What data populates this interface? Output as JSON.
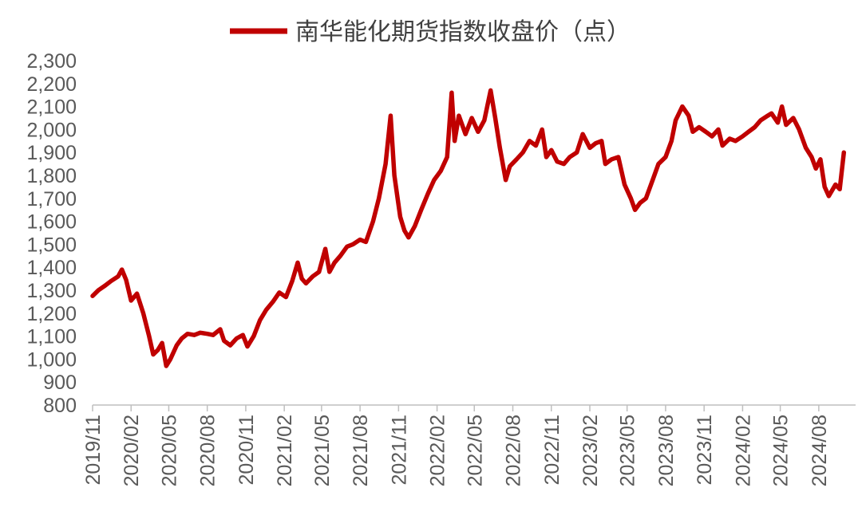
{
  "colors": {
    "series": "#C00000",
    "axis": "#BFBFBF",
    "text": "#595959"
  },
  "chart_data": {
    "type": "line",
    "legend_position": "top-center",
    "grid": false,
    "ylim": [
      800,
      2300
    ],
    "yticks": [
      800,
      900,
      1000,
      1100,
      1200,
      1300,
      1400,
      1500,
      1600,
      1700,
      1800,
      1900,
      2000,
      2100,
      2200,
      2300
    ],
    "ytick_labels": [
      "800",
      "900",
      "1,000",
      "1,100",
      "1,200",
      "1,300",
      "1,400",
      "1,500",
      "1,600",
      "1,700",
      "1,800",
      "1,900",
      "2,000",
      "2,100",
      "2,200",
      "2,300"
    ],
    "xlim": [
      "2019-11-01",
      "2024-10-28"
    ],
    "xticks": [
      "2019-11-01",
      "2020-02-01",
      "2020-05-01",
      "2020-08-01",
      "2020-11-01",
      "2021-02-01",
      "2021-05-01",
      "2021-08-01",
      "2021-11-01",
      "2022-02-01",
      "2022-05-01",
      "2022-08-01",
      "2022-11-01",
      "2023-02-01",
      "2023-05-01",
      "2023-08-01",
      "2023-11-01",
      "2024-02-01",
      "2024-05-01",
      "2024-08-01"
    ],
    "xtick_labels": [
      "2019/11",
      "2020/02",
      "2020/05",
      "2020/08",
      "2020/11",
      "2021/02",
      "2021/05",
      "2021/08",
      "2021/11",
      "2022/02",
      "2022/05",
      "2022/08",
      "2022/11",
      "2023/02",
      "2023/05",
      "2023/08",
      "2023/11",
      "2024/02",
      "2024/05",
      "2024/08"
    ],
    "series": [
      {
        "name": "南华能化期货指数收盘价（点）",
        "points": [
          [
            "2019-11-01",
            1275
          ],
          [
            "2019-11-15",
            1300
          ],
          [
            "2019-12-01",
            1320
          ],
          [
            "2019-12-15",
            1340
          ],
          [
            "2020-01-01",
            1360
          ],
          [
            "2020-01-10",
            1390
          ],
          [
            "2020-01-20",
            1345
          ],
          [
            "2020-02-01",
            1255
          ],
          [
            "2020-02-15",
            1285
          ],
          [
            "2020-03-01",
            1200
          ],
          [
            "2020-03-15",
            1100
          ],
          [
            "2020-03-25",
            1020
          ],
          [
            "2020-04-05",
            1040
          ],
          [
            "2020-04-15",
            1070
          ],
          [
            "2020-04-25",
            970
          ],
          [
            "2020-05-05",
            1000
          ],
          [
            "2020-05-20",
            1060
          ],
          [
            "2020-06-01",
            1090
          ],
          [
            "2020-06-15",
            1110
          ],
          [
            "2020-07-01",
            1105
          ],
          [
            "2020-07-15",
            1115
          ],
          [
            "2020-08-01",
            1110
          ],
          [
            "2020-08-15",
            1105
          ],
          [
            "2020-09-01",
            1130
          ],
          [
            "2020-09-10",
            1080
          ],
          [
            "2020-09-25",
            1060
          ],
          [
            "2020-10-10",
            1090
          ],
          [
            "2020-10-25",
            1105
          ],
          [
            "2020-11-05",
            1055
          ],
          [
            "2020-11-20",
            1100
          ],
          [
            "2020-12-05",
            1170
          ],
          [
            "2020-12-20",
            1215
          ],
          [
            "2021-01-05",
            1250
          ],
          [
            "2021-01-20",
            1290
          ],
          [
            "2021-02-05",
            1270
          ],
          [
            "2021-02-20",
            1340
          ],
          [
            "2021-03-05",
            1420
          ],
          [
            "2021-03-15",
            1350
          ],
          [
            "2021-03-25",
            1330
          ],
          [
            "2021-04-10",
            1360
          ],
          [
            "2021-04-25",
            1380
          ],
          [
            "2021-05-10",
            1480
          ],
          [
            "2021-05-20",
            1380
          ],
          [
            "2021-06-01",
            1420
          ],
          [
            "2021-06-15",
            1450
          ],
          [
            "2021-07-01",
            1490
          ],
          [
            "2021-07-15",
            1500
          ],
          [
            "2021-08-01",
            1520
          ],
          [
            "2021-08-15",
            1510
          ],
          [
            "2021-09-01",
            1600
          ],
          [
            "2021-09-15",
            1700
          ],
          [
            "2021-10-01",
            1850
          ],
          [
            "2021-10-13",
            2060
          ],
          [
            "2021-10-22",
            1800
          ],
          [
            "2021-11-05",
            1620
          ],
          [
            "2021-11-15",
            1560
          ],
          [
            "2021-11-25",
            1530
          ],
          [
            "2021-12-10",
            1580
          ],
          [
            "2021-12-25",
            1650
          ],
          [
            "2022-01-10",
            1720
          ],
          [
            "2022-01-25",
            1780
          ],
          [
            "2022-02-10",
            1820
          ],
          [
            "2022-02-25",
            1880
          ],
          [
            "2022-03-08",
            2160
          ],
          [
            "2022-03-15",
            1950
          ],
          [
            "2022-03-25",
            2060
          ],
          [
            "2022-04-10",
            1980
          ],
          [
            "2022-04-25",
            2050
          ],
          [
            "2022-05-10",
            1990
          ],
          [
            "2022-05-25",
            2040
          ],
          [
            "2022-06-09",
            2170
          ],
          [
            "2022-06-20",
            2050
          ],
          [
            "2022-07-01",
            1920
          ],
          [
            "2022-07-15",
            1780
          ],
          [
            "2022-07-25",
            1840
          ],
          [
            "2022-08-10",
            1870
          ],
          [
            "2022-08-25",
            1900
          ],
          [
            "2022-09-10",
            1950
          ],
          [
            "2022-09-25",
            1930
          ],
          [
            "2022-10-10",
            2000
          ],
          [
            "2022-10-20",
            1880
          ],
          [
            "2022-11-01",
            1910
          ],
          [
            "2022-11-15",
            1860
          ],
          [
            "2022-12-01",
            1850
          ],
          [
            "2022-12-15",
            1880
          ],
          [
            "2023-01-01",
            1900
          ],
          [
            "2023-01-15",
            1980
          ],
          [
            "2023-02-01",
            1920
          ],
          [
            "2023-02-15",
            1940
          ],
          [
            "2023-03-01",
            1950
          ],
          [
            "2023-03-10",
            1850
          ],
          [
            "2023-03-25",
            1870
          ],
          [
            "2023-04-10",
            1880
          ],
          [
            "2023-04-25",
            1760
          ],
          [
            "2023-05-10",
            1700
          ],
          [
            "2023-05-20",
            1650
          ],
          [
            "2023-06-01",
            1680
          ],
          [
            "2023-06-15",
            1700
          ],
          [
            "2023-07-01",
            1780
          ],
          [
            "2023-07-15",
            1850
          ],
          [
            "2023-08-01",
            1880
          ],
          [
            "2023-08-15",
            1950
          ],
          [
            "2023-08-25",
            2040
          ],
          [
            "2023-09-10",
            2100
          ],
          [
            "2023-09-25",
            2060
          ],
          [
            "2023-10-05",
            1990
          ],
          [
            "2023-10-20",
            2010
          ],
          [
            "2023-11-05",
            1990
          ],
          [
            "2023-11-20",
            1970
          ],
          [
            "2023-12-05",
            2000
          ],
          [
            "2023-12-15",
            1930
          ],
          [
            "2024-01-01",
            1960
          ],
          [
            "2024-01-15",
            1950
          ],
          [
            "2024-02-01",
            1970
          ],
          [
            "2024-02-15",
            1990
          ],
          [
            "2024-03-01",
            2010
          ],
          [
            "2024-03-15",
            2040
          ],
          [
            "2024-04-01",
            2060
          ],
          [
            "2024-04-10",
            2070
          ],
          [
            "2024-04-25",
            2030
          ],
          [
            "2024-05-05",
            2100
          ],
          [
            "2024-05-15",
            2020
          ],
          [
            "2024-06-01",
            2050
          ],
          [
            "2024-06-15",
            2000
          ],
          [
            "2024-07-01",
            1920
          ],
          [
            "2024-07-15",
            1880
          ],
          [
            "2024-07-25",
            1830
          ],
          [
            "2024-08-05",
            1870
          ],
          [
            "2024-08-15",
            1750
          ],
          [
            "2024-08-25",
            1710
          ],
          [
            "2024-09-10",
            1760
          ],
          [
            "2024-09-20",
            1740
          ],
          [
            "2024-09-30",
            1900
          ]
        ]
      }
    ]
  }
}
